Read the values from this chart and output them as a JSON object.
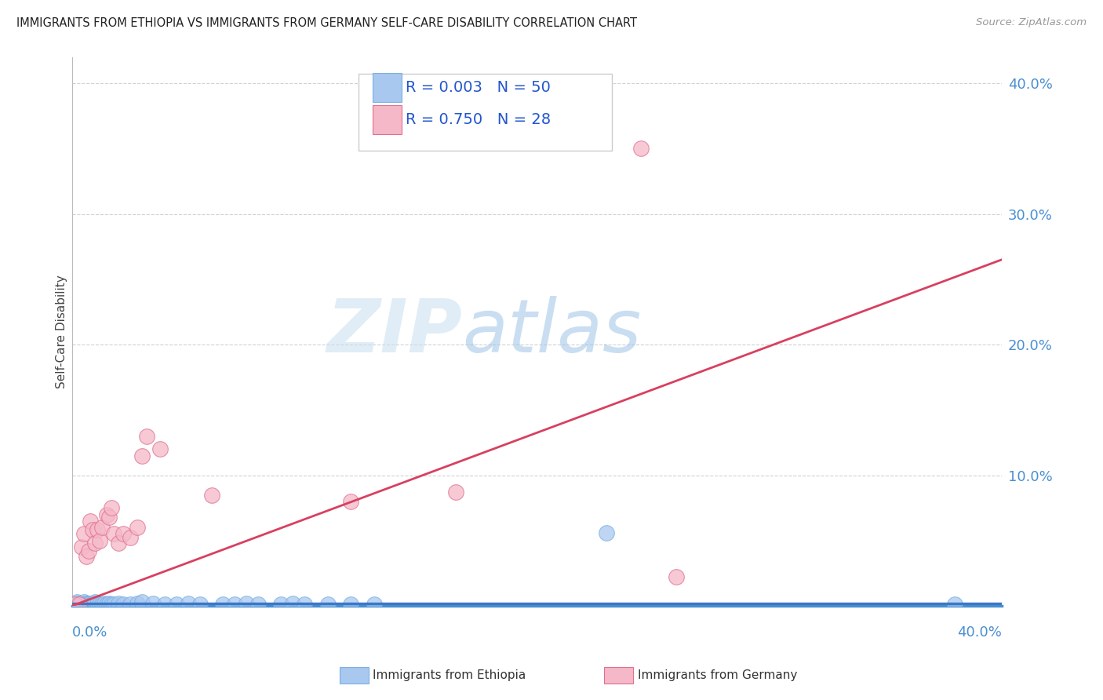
{
  "title": "IMMIGRANTS FROM ETHIOPIA VS IMMIGRANTS FROM GERMANY SELF-CARE DISABILITY CORRELATION CHART",
  "source": "Source: ZipAtlas.com",
  "ylabel": "Self-Care Disability",
  "xlim": [
    0.0,
    0.4
  ],
  "ylim": [
    0.0,
    0.42
  ],
  "yticks": [
    0.0,
    0.1,
    0.2,
    0.3,
    0.4
  ],
  "ytick_labels": [
    "",
    "10.0%",
    "20.0%",
    "30.0%",
    "40.0%"
  ],
  "ethiopia_color": "#a8c8f0",
  "ethiopia_edge": "#7ab0e0",
  "germany_color": "#f5b8c8",
  "germany_edge": "#e07090",
  "trendline_ethiopia_color": "#3a78c8",
  "trendline_germany_color": "#d84060",
  "ytick_color": "#4a90d0",
  "xlabel_color": "#4a90d0",
  "watermark_zip": "ZIP",
  "watermark_atlas": "atlas",
  "watermark_color_zip": "#c0d8f0",
  "watermark_color_atlas": "#a8c8e8",
  "legend_eth_label": "R = 0.003   N = 50",
  "legend_ger_label": "R = 0.750   N = 28",
  "legend_color": "#2255cc",
  "bottom_label_eth": "Immigrants from Ethiopia",
  "bottom_label_ger": "Immigrants from Germany",
  "ethiopia_points": [
    [
      0.001,
      0.001
    ],
    [
      0.002,
      0.002
    ],
    [
      0.002,
      0.003
    ],
    [
      0.003,
      0.001
    ],
    [
      0.003,
      0.002
    ],
    [
      0.004,
      0.001
    ],
    [
      0.004,
      0.002
    ],
    [
      0.005,
      0.001
    ],
    [
      0.005,
      0.003
    ],
    [
      0.006,
      0.001
    ],
    [
      0.006,
      0.002
    ],
    [
      0.007,
      0.001
    ],
    [
      0.007,
      0.002
    ],
    [
      0.008,
      0.001
    ],
    [
      0.008,
      0.002
    ],
    [
      0.009,
      0.001
    ],
    [
      0.009,
      0.002
    ],
    [
      0.01,
      0.001
    ],
    [
      0.01,
      0.003
    ],
    [
      0.011,
      0.001
    ],
    [
      0.011,
      0.002
    ],
    [
      0.012,
      0.001
    ],
    [
      0.013,
      0.001
    ],
    [
      0.014,
      0.002
    ],
    [
      0.015,
      0.001
    ],
    [
      0.016,
      0.002
    ],
    [
      0.017,
      0.001
    ],
    [
      0.018,
      0.001
    ],
    [
      0.02,
      0.002
    ],
    [
      0.022,
      0.001
    ],
    [
      0.025,
      0.001
    ],
    [
      0.028,
      0.002
    ],
    [
      0.03,
      0.003
    ],
    [
      0.035,
      0.002
    ],
    [
      0.04,
      0.001
    ],
    [
      0.045,
      0.001
    ],
    [
      0.05,
      0.002
    ],
    [
      0.055,
      0.001
    ],
    [
      0.065,
      0.001
    ],
    [
      0.07,
      0.001
    ],
    [
      0.075,
      0.002
    ],
    [
      0.08,
      0.001
    ],
    [
      0.09,
      0.001
    ],
    [
      0.095,
      0.002
    ],
    [
      0.1,
      0.001
    ],
    [
      0.11,
      0.001
    ],
    [
      0.12,
      0.001
    ],
    [
      0.13,
      0.001
    ],
    [
      0.23,
      0.056
    ],
    [
      0.38,
      0.001
    ]
  ],
  "germany_points": [
    [
      0.001,
      0.001
    ],
    [
      0.003,
      0.001
    ],
    [
      0.004,
      0.045
    ],
    [
      0.005,
      0.055
    ],
    [
      0.006,
      0.038
    ],
    [
      0.007,
      0.042
    ],
    [
      0.008,
      0.065
    ],
    [
      0.009,
      0.058
    ],
    [
      0.01,
      0.048
    ],
    [
      0.011,
      0.058
    ],
    [
      0.012,
      0.05
    ],
    [
      0.013,
      0.06
    ],
    [
      0.015,
      0.07
    ],
    [
      0.016,
      0.068
    ],
    [
      0.017,
      0.075
    ],
    [
      0.018,
      0.055
    ],
    [
      0.02,
      0.048
    ],
    [
      0.022,
      0.055
    ],
    [
      0.025,
      0.052
    ],
    [
      0.028,
      0.06
    ],
    [
      0.03,
      0.115
    ],
    [
      0.032,
      0.13
    ],
    [
      0.038,
      0.12
    ],
    [
      0.06,
      0.085
    ],
    [
      0.12,
      0.08
    ],
    [
      0.165,
      0.087
    ],
    [
      0.245,
      0.35
    ],
    [
      0.26,
      0.022
    ]
  ]
}
